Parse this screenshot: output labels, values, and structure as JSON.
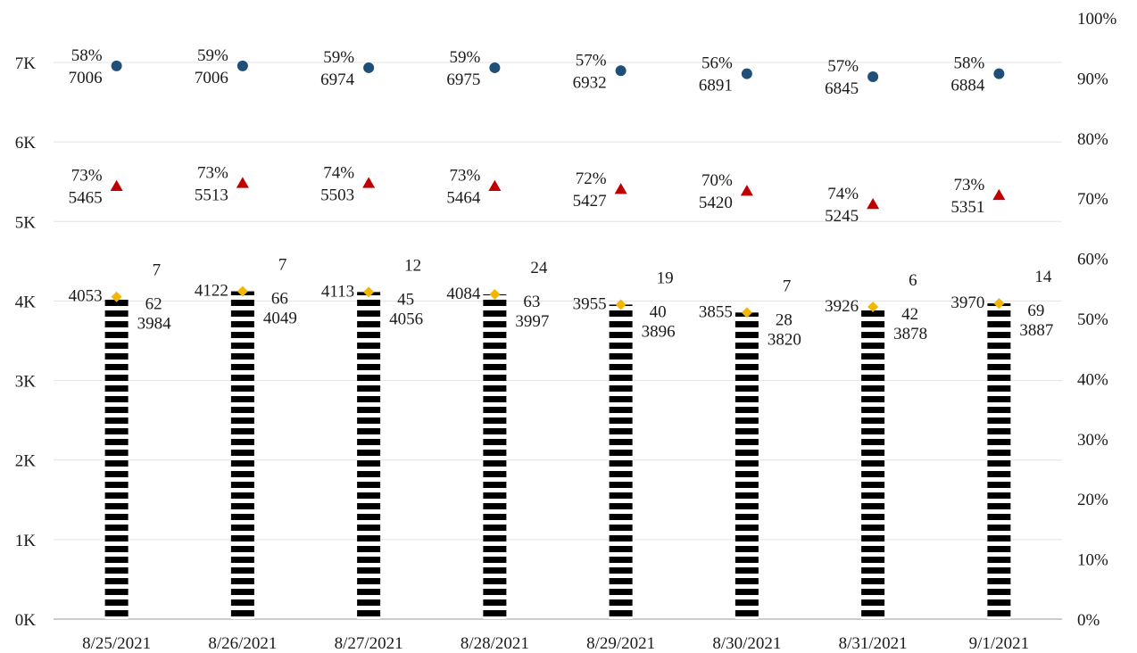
{
  "chart_data": {
    "type": "bar",
    "categories": [
      "8/25/2021",
      "8/26/2021",
      "8/27/2021",
      "8/28/2021",
      "8/29/2021",
      "8/30/2021",
      "8/31/2021",
      "9/1/2021"
    ],
    "y_left": {
      "ylim": [
        0,
        7000
      ],
      "ticks": [
        "0K",
        "1K",
        "2K",
        "3K",
        "4K",
        "5K",
        "6K",
        "7K"
      ]
    },
    "y_right": {
      "ylim": [
        0,
        100
      ],
      "ticks": [
        "0%",
        "10%",
        "20%",
        "30%",
        "40%",
        "50%",
        "60%",
        "70%",
        "80%",
        "90%",
        "100%"
      ]
    },
    "grid": true,
    "bar_series": {
      "pattern": "black-white-horizontal-stripes",
      "stack": [
        {
          "values": [
            3984,
            4049,
            4056,
            3997,
            3896,
            3820,
            3878,
            3887
          ],
          "label_style": "right-below"
        },
        {
          "values": [
            62,
            66,
            45,
            63,
            40,
            28,
            42,
            69
          ],
          "label_style": "right-middle"
        },
        {
          "values": [
            7,
            7,
            12,
            24,
            19,
            7,
            6,
            14
          ],
          "label_style": "right-above"
        }
      ],
      "totals": [
        4053,
        4122,
        4113,
        4084,
        3955,
        3855,
        3926,
        3970
      ],
      "total_marker_color": "#f2b705"
    },
    "point_series": [
      {
        "marker": "circle",
        "color": "#1f4e79",
        "values": [
          7006,
          7006,
          6974,
          6975,
          6932,
          6891,
          6845,
          6884
        ],
        "percent_labels": [
          "58%",
          "59%",
          "59%",
          "59%",
          "57%",
          "56%",
          "57%",
          "58%"
        ],
        "percent_positions": [
          92,
          92,
          91.7,
          91.7,
          91.2,
          90.7,
          90.2,
          90.7
        ]
      },
      {
        "marker": "triangle",
        "color": "#c00000",
        "values": [
          5465,
          5513,
          5503,
          5464,
          5427,
          5420,
          5245,
          5351
        ],
        "percent_labels": [
          "73%",
          "73%",
          "74%",
          "73%",
          "72%",
          "70%",
          "74%",
          "73%"
        ],
        "percent_positions": [
          72,
          72.5,
          72.5,
          72,
          71.5,
          71.2,
          69,
          70.5
        ]
      }
    ]
  },
  "colors": {
    "grid": "#e3e3e3",
    "axis": "#999999",
    "text": "#1a1a1a",
    "stripe_dark": "#000000",
    "stripe_light": "#ffffff"
  }
}
